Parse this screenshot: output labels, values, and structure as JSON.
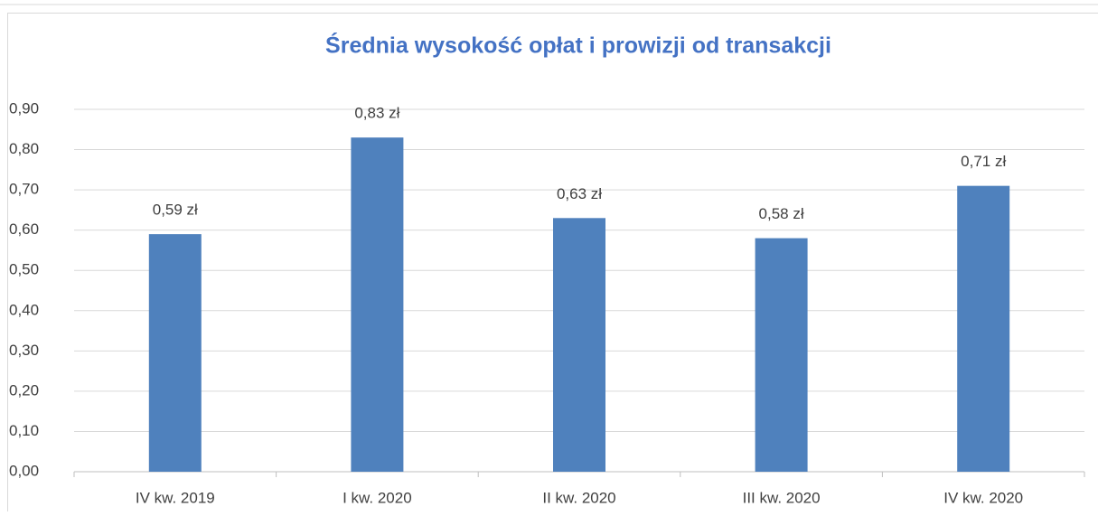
{
  "chart_data": {
    "type": "bar",
    "title": "Średnia wysokość opłat i prowizji od transakcji",
    "categories": [
      "IV kw. 2019",
      "I kw. 2020",
      "II kw. 2020",
      "III kw. 2020",
      "IV kw. 2020"
    ],
    "values": [
      0.59,
      0.83,
      0.63,
      0.58,
      0.71
    ],
    "value_labels": [
      "0,59 zł",
      "0,83 zł",
      "0,63 zł",
      "0,58 zł",
      "0,71 zł"
    ],
    "color": "#4f81bd",
    "ylim": [
      0,
      0.9
    ],
    "yticks": [
      {
        "value": 0,
        "label": "0,00"
      },
      {
        "value": 0.1,
        "label": "0,10"
      },
      {
        "value": 0.2,
        "label": "0,20"
      },
      {
        "value": 0.3,
        "label": "0,30"
      },
      {
        "value": 0.4,
        "label": "0,40"
      },
      {
        "value": 0.5,
        "label": "0,50"
      },
      {
        "value": 0.6,
        "label": "0,60"
      },
      {
        "value": 0.7,
        "label": "0,70"
      },
      {
        "value": 0.8,
        "label": "0,80"
      },
      {
        "value": 0.9,
        "label": "0,90"
      }
    ],
    "grid": true
  }
}
